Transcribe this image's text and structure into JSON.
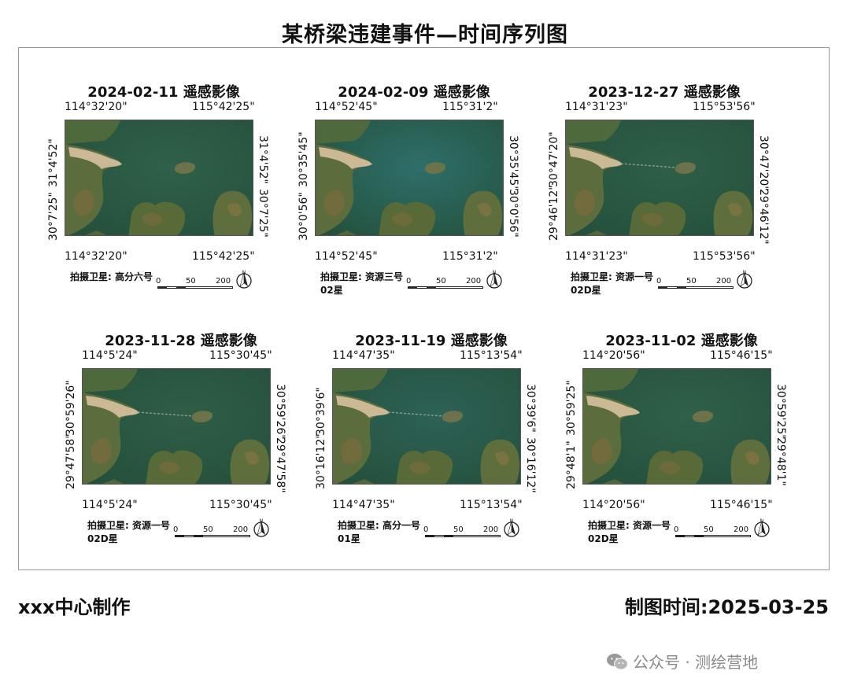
{
  "title": "某桥梁违建事件—时间序列图",
  "footer": {
    "maker": "xxx中心制作",
    "date": "制图时间:2025-03-25"
  },
  "watermark": "公众号 · 测绘营地",
  "scale": {
    "tick0": "0",
    "tick1": "50",
    "tick2": "200"
  },
  "north_icon": "north-arrow-icon",
  "colors": {
    "water_a": "#2f5e45",
    "water_b": "#2d6a62",
    "land": "#5b6a3a",
    "sand": "#c9b994"
  },
  "panels": [
    {
      "title": "2024-02-11 遥感影像",
      "lon_left": "114°32'20\"",
      "lon_right": "115°42'25\"",
      "lat_left_top": "31°4'52\"",
      "lat_left_bottom": "30°7'25\"",
      "lat_right_top": "31°4'52\"",
      "lat_right_bottom": "30°7'25\"",
      "sat_label": "拍摄卫星:",
      "sat_name": "高分六号",
      "bridge": 0,
      "water": "#30604a"
    },
    {
      "title": "2024-02-09 遥感影像",
      "lon_left": "114°52'45\"",
      "lon_right": "115°31'2\"",
      "lat_left_top": "30°35'45\"",
      "lat_left_bottom": "30°0'56\"",
      "lat_right_top": "30°35'45\"",
      "lat_right_bottom": "30°0'56\"",
      "sat_label": "拍摄卫星:",
      "sat_name": "资源三号02星",
      "bridge": 0,
      "water": "#2e6f6a"
    },
    {
      "title": "2023-12-27 遥感影像",
      "lon_left": "114°31'23\"",
      "lon_right": "115°53'56\"",
      "lat_left_top": "30°47'20\"",
      "lat_left_bottom": "29°46'12\"",
      "lat_right_top": "30°47'20\"",
      "lat_right_bottom": "29°46'12\"",
      "sat_label": "拍摄卫星:",
      "sat_name": "资源一号02D星",
      "bridge": 1,
      "water": "#2e5f48"
    },
    {
      "title": "2023-11-28 遥感影像",
      "lon_left": "114°5'24\"",
      "lon_right": "115°30'45\"",
      "lat_left_top": "30°59'26\"",
      "lat_left_bottom": "29°47'58\"",
      "lat_right_top": "30°59'26\"",
      "lat_right_bottom": "29°47'58\"",
      "sat_label": "拍摄卫星:",
      "sat_name": "资源一号02D星",
      "bridge": 1,
      "water": "#2f5d46"
    },
    {
      "title": "2023-11-19 遥感影像",
      "lon_left": "114°47'35\"",
      "lon_right": "115°13'54\"",
      "lat_left_top": "30°39'6\"",
      "lat_left_bottom": "30°16'12\"",
      "lat_right_top": "30°39'6\"",
      "lat_right_bottom": "30°16'12\"",
      "sat_label": "拍摄卫星:",
      "sat_name": "高分一号01星",
      "bridge": 1,
      "water": "#2d6256"
    },
    {
      "title": "2023-11-02 遥感影像",
      "lon_left": "114°20'56\"",
      "lon_right": "115°46'15\"",
      "lat_left_top": "30°59'25\"",
      "lat_left_bottom": "29°48'1\"",
      "lat_right_top": "30°59'25\"",
      "lat_right_bottom": "29°48'1\"",
      "sat_label": "拍摄卫星:",
      "sat_name": "资源一号02D星",
      "bridge": 0,
      "water": "#30604a"
    }
  ]
}
